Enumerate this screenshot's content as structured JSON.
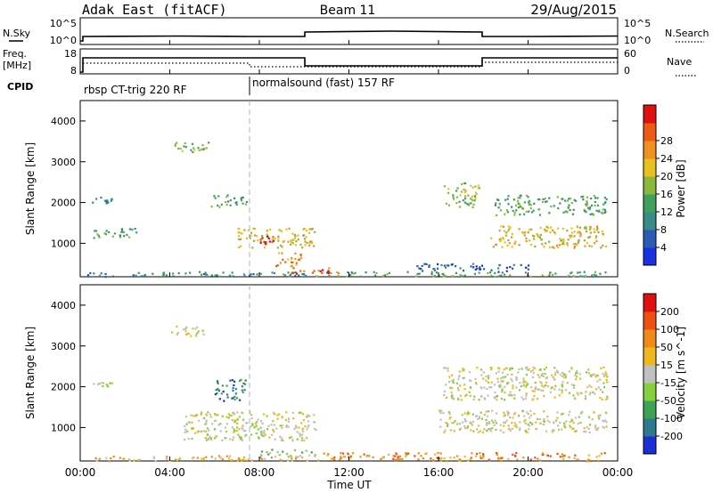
{
  "header": {
    "radar": "Adak East (fitACF)",
    "beam": "Beam 11",
    "date": "29/Aug/2015"
  },
  "nsky": {
    "label": "N.Sky",
    "tick_top": "10^5",
    "tick_bottom": "10^0"
  },
  "nsearch": {
    "label": "N.Search",
    "tick_top": "10^5",
    "tick_bottom": "10^0"
  },
  "freq": {
    "label": "Freq.",
    "unit": "[MHz]",
    "tick_top": "18",
    "tick_bottom": "8"
  },
  "nave": {
    "label": "Nave",
    "tick_top": "60",
    "tick_bottom": "0"
  },
  "cpid": {
    "label": "CPID",
    "mode1": "rbsp CT-trig 220 RF",
    "mode2": "normalsound (fast) 157 RF"
  },
  "chart_data": [
    {
      "type": "heatmap",
      "ylabel": "Slant Range [km]",
      "xlabel": "Time UT",
      "x_ticks": [
        "00:00",
        "04:00",
        "08:00",
        "12:00",
        "16:00",
        "20:00",
        "00:00"
      ],
      "y_ticks": [
        "1000",
        "2000",
        "3000",
        "4000"
      ],
      "ylim": [
        180,
        4500
      ],
      "colorbar": {
        "label": "Power [dB]",
        "ticks": [
          "4",
          "8",
          "12",
          "16",
          "20",
          "24",
          "28"
        ],
        "colors": [
          "#1a2fe0",
          "#2a5bb5",
          "#3a8a8a",
          "#3fa05c",
          "#8ab83a",
          "#e8c020",
          "#f09020",
          "#ee5a14",
          "#e01010"
        ]
      },
      "regions": [
        {
          "t0": 0.3,
          "t1": 10.5,
          "r0": 200,
          "r1": 320,
          "level": 2
        },
        {
          "t0": 10.5,
          "t1": 23.5,
          "r0": 200,
          "r1": 320,
          "level": 3
        },
        {
          "t0": 9.0,
          "t1": 11.5,
          "r0": 260,
          "r1": 420,
          "level": 7
        },
        {
          "t0": 4.0,
          "t1": 5.7,
          "r0": 3250,
          "r1": 3500,
          "level": 4
        },
        {
          "t0": 0.5,
          "t1": 1.4,
          "r0": 2000,
          "r1": 2150,
          "level": 2
        },
        {
          "t0": 0.5,
          "t1": 2.5,
          "r0": 1150,
          "r1": 1400,
          "level": 3
        },
        {
          "t0": 5.8,
          "t1": 7.4,
          "r0": 1900,
          "r1": 2200,
          "level": 3
        },
        {
          "t0": 7.0,
          "t1": 10.5,
          "r0": 900,
          "r1": 1400,
          "level": 5
        },
        {
          "t0": 8.0,
          "t1": 8.6,
          "r0": 1000,
          "r1": 1200,
          "level": 8
        },
        {
          "t0": 8.7,
          "t1": 10.0,
          "r0": 450,
          "r1": 800,
          "level": 6
        },
        {
          "t0": 16.2,
          "t1": 17.8,
          "r0": 1900,
          "r1": 2500,
          "level": 4
        },
        {
          "t0": 18.5,
          "t1": 23.5,
          "r0": 1700,
          "r1": 2200,
          "level": 3
        },
        {
          "t0": 18.3,
          "t1": 23.5,
          "r0": 900,
          "r1": 1450,
          "level": 5
        },
        {
          "t0": 15.0,
          "t1": 20.0,
          "r0": 320,
          "r1": 520,
          "level": 1
        }
      ]
    },
    {
      "type": "heatmap",
      "ylabel": "Slant Range [km]",
      "xlabel": "Time UT",
      "x_ticks": [
        "00:00",
        "04:00",
        "08:00",
        "12:00",
        "16:00",
        "20:00",
        "00:00"
      ],
      "y_ticks": [
        "1000",
        "2000",
        "3000",
        "4000"
      ],
      "ylim": [
        180,
        4500
      ],
      "colorbar": {
        "label": "Velocity [m s^-1]",
        "ticks": [
          "200",
          "100",
          "50",
          "15",
          "-15",
          "-50",
          "-100",
          "-200"
        ],
        "colors": [
          "#1b2fd6",
          "#2d7a8e",
          "#3ea356",
          "#86d03e",
          "#c0c0c0",
          "#f0b820",
          "#f08a18",
          "#ee5010",
          "#e01010"
        ]
      },
      "regions": [
        {
          "t0": 0.3,
          "t1": 10.5,
          "r0": 200,
          "r1": 330,
          "level": 5
        },
        {
          "t0": 10.5,
          "t1": 23.5,
          "r0": 200,
          "r1": 400,
          "level": 6
        },
        {
          "t0": 8.0,
          "t1": 10.5,
          "r0": 300,
          "r1": 480,
          "level": 3
        },
        {
          "t0": 4.0,
          "t1": 5.7,
          "r0": 3250,
          "r1": 3500,
          "level": 4
        },
        {
          "t0": 0.5,
          "t1": 1.4,
          "r0": 2000,
          "r1": 2150,
          "level": 4
        },
        {
          "t0": 6.0,
          "t1": 7.4,
          "r0": 1650,
          "r1": 2200,
          "level": 1
        },
        {
          "t0": 4.5,
          "t1": 10.5,
          "r0": 700,
          "r1": 1400,
          "level": 4
        },
        {
          "t0": 16.2,
          "t1": 23.5,
          "r0": 1700,
          "r1": 2500,
          "level": 4
        },
        {
          "t0": 16.0,
          "t1": 23.5,
          "r0": 900,
          "r1": 1450,
          "level": 4
        }
      ]
    }
  ]
}
